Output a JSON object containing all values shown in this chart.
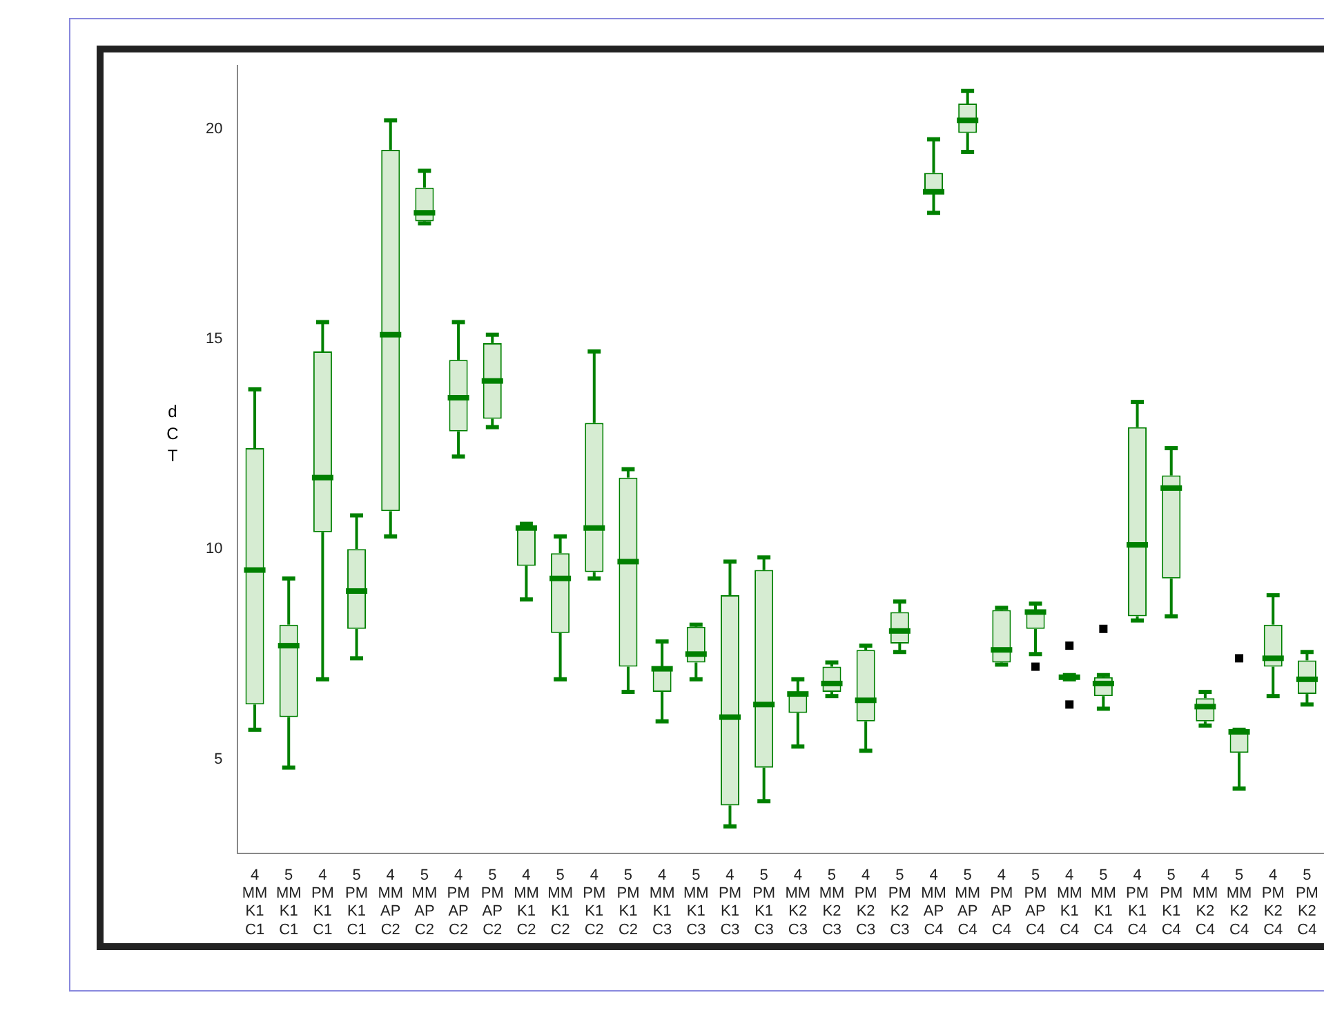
{
  "chart_data": {
    "type": "box",
    "ylabel": "dCT",
    "categories": [
      "4\nMM\nK1\nC1",
      "5\nMM\nK1\nC1",
      "4\nPM\nK1\nC1",
      "5\nPM\nK1\nC1",
      "4\nMM\nAP\nC2",
      "5\nMM\nAP\nC2",
      "4\nPM\nAP\nC2",
      "5\nPM\nAP\nC2",
      "4\nMM\nK1\nC2",
      "5\nMM\nK1\nC2",
      "4\nPM\nK1\nC2",
      "5\nPM\nK1\nC2",
      "4\nMM\nK1\nC3",
      "5\nMM\nK1\nC3",
      "4\nPM\nK1\nC3",
      "5\nPM\nK1\nC3",
      "4\nMM\nK2\nC3",
      "5\nMM\nK2\nC3",
      "4\nPM\nK2\nC3",
      "5\nPM\nK2\nC3",
      "4\nMM\nAP\nC4",
      "5\nMM\nAP\nC4",
      "4\nPM\nAP\nC4",
      "5\nPM\nAP\nC4",
      "4\nMM\nK1\nC4",
      "5\nMM\nK1\nC4",
      "4\nPM\nK1\nC4",
      "5\nPM\nK1\nC4",
      "4\nMM\nK2\nC4",
      "5\nMM\nK2\nC4",
      "4\nPM\nK2\nC4",
      "5\nPM\nK2\nC4"
    ],
    "series": [
      {
        "color": "#008000",
        "boxes": [
          {
            "low": 5.7,
            "q1": 6.3,
            "median": 9.5,
            "q3": 12.4,
            "high": 13.8
          },
          {
            "low": 4.8,
            "q1": 6.0,
            "median": 7.7,
            "q3": 8.2,
            "high": 9.3
          },
          {
            "low": 6.9,
            "q1": 10.4,
            "median": 11.7,
            "q3": 14.7,
            "high": 15.4
          },
          {
            "low": 7.4,
            "q1": 8.1,
            "median": 9.0,
            "q3": 10.0,
            "high": 10.8
          },
          {
            "low": 10.3,
            "q1": 10.9,
            "median": 15.1,
            "q3": 19.5,
            "high": 20.2
          },
          {
            "low": 17.75,
            "q1": 17.8,
            "median": 18.0,
            "q3": 18.6,
            "high": 19.0
          },
          {
            "low": 12.2,
            "q1": 12.8,
            "median": 13.6,
            "q3": 14.5,
            "high": 15.4
          },
          {
            "low": 12.9,
            "q1": 13.1,
            "median": 14.0,
            "q3": 14.9,
            "high": 15.1
          },
          {
            "low": 8.8,
            "q1": 9.6,
            "median": 10.5,
            "q3": 10.55,
            "high": 10.6
          },
          {
            "low": 6.9,
            "q1": 8.0,
            "median": 9.3,
            "q3": 9.9,
            "high": 10.3
          },
          {
            "low": 9.3,
            "q1": 9.45,
            "median": 10.5,
            "q3": 13.0,
            "high": 14.7
          },
          {
            "low": 6.6,
            "q1": 7.2,
            "median": 9.7,
            "q3": 11.7,
            "high": 11.9
          },
          {
            "low": 5.9,
            "q1": 6.6,
            "median": 7.15,
            "q3": 7.2,
            "high": 7.8
          },
          {
            "low": 6.9,
            "q1": 7.3,
            "median": 7.5,
            "q3": 8.15,
            "high": 8.2
          },
          {
            "low": 3.4,
            "q1": 3.9,
            "median": 6.0,
            "q3": 8.9,
            "high": 9.7
          },
          {
            "low": 4.0,
            "q1": 4.8,
            "median": 6.3,
            "q3": 9.5,
            "high": 9.8
          },
          {
            "low": 5.3,
            "q1": 6.1,
            "median": 6.55,
            "q3": 6.6,
            "high": 6.9
          },
          {
            "low": 6.5,
            "q1": 6.6,
            "median": 6.8,
            "q3": 7.2,
            "high": 7.3
          },
          {
            "low": 5.2,
            "q1": 5.9,
            "median": 6.4,
            "q3": 7.6,
            "high": 7.7
          },
          {
            "low": 7.55,
            "q1": 7.75,
            "median": 8.05,
            "q3": 8.5,
            "high": 8.75
          },
          {
            "low": 18.0,
            "q1": 18.45,
            "median": 18.5,
            "q3": 18.95,
            "high": 19.75
          },
          {
            "low": 19.45,
            "q1": 19.9,
            "median": 20.2,
            "q3": 20.6,
            "high": 20.9
          },
          {
            "low": 7.25,
            "q1": 7.3,
            "median": 7.6,
            "q3": 8.55,
            "high": 8.6
          },
          {
            "low": 7.5,
            "q1": 8.1,
            "median": 8.5,
            "q3": 8.55,
            "high": 8.7,
            "outliers": [
              7.2
            ]
          },
          {
            "low": 6.9,
            "q1": 6.9,
            "median": 6.95,
            "q3": 7.0,
            "high": 7.0,
            "outliers": [
              7.7,
              6.3
            ]
          },
          {
            "low": 6.2,
            "q1": 6.5,
            "median": 6.8,
            "q3": 6.95,
            "high": 7.0,
            "outliers": [
              8.1
            ]
          },
          {
            "low": 8.3,
            "q1": 8.4,
            "median": 10.1,
            "q3": 12.9,
            "high": 13.5
          },
          {
            "low": 8.4,
            "q1": 9.3,
            "median": 11.45,
            "q3": 11.75,
            "high": 12.4
          },
          {
            "low": 5.8,
            "q1": 5.9,
            "median": 6.25,
            "q3": 6.45,
            "high": 6.6
          },
          {
            "low": 4.3,
            "q1": 5.15,
            "median": 5.65,
            "q3": 5.7,
            "high": 5.7,
            "outliers": [
              7.4
            ]
          },
          {
            "low": 6.5,
            "q1": 7.2,
            "median": 7.4,
            "q3": 8.2,
            "high": 8.9
          },
          {
            "low": 6.3,
            "q1": 6.55,
            "median": 6.9,
            "q3": 7.35,
            "high": 7.55
          }
        ]
      }
    ],
    "ylim": [
      2.75,
      21.5
    ],
    "yticks": [
      5,
      10,
      15,
      20
    ],
    "grid": false,
    "legend": false
  }
}
